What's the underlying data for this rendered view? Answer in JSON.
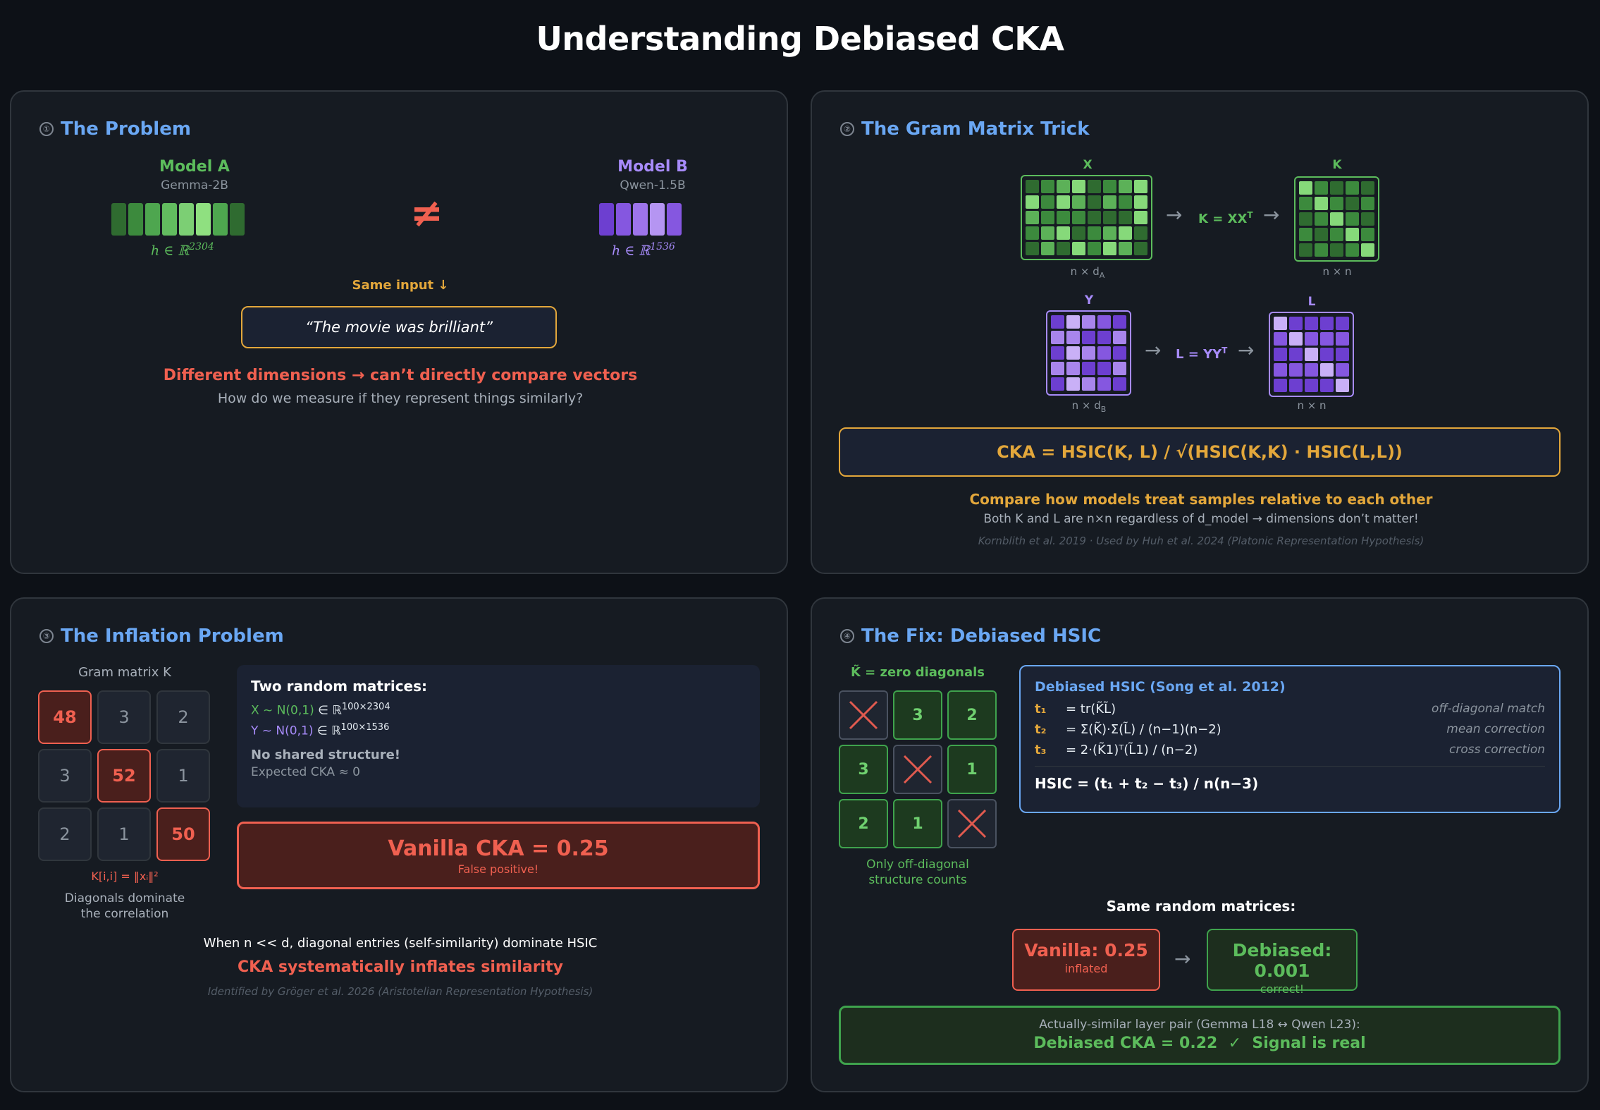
{
  "title": "Understanding Debiased CKA",
  "colors": {
    "green": "#5cbc5c",
    "purple": "#a78bfa",
    "orange": "#e3a73b",
    "red": "#f06050",
    "blue": "#6aa7f3"
  },
  "panel1": {
    "num": "①",
    "title": "The Problem",
    "model_a": {
      "name": "Model A",
      "sub": "Gemma-2B",
      "dim": "h ∈ ℝ",
      "dim_sup": "2304"
    },
    "model_b": {
      "name": "Model B",
      "sub": "Qwen-1.5B",
      "dim": "h ∈ ℝ",
      "dim_sup": "1536"
    },
    "neq": "≠",
    "same_input": "Same input ↓",
    "quote": "“The movie was brilliant”",
    "headline": "Different dimensions → can’t directly compare vectors",
    "subline": "How do we measure if they represent things similarly?"
  },
  "panel2": {
    "num": "②",
    "title": "The Gram Matrix Trick",
    "x_label": "X",
    "k_label": "K",
    "y_label": "Y",
    "l_label": "L",
    "k_eq": "K = XX",
    "l_eq": "L = YY",
    "transpose": "T",
    "x_dim": "n × d",
    "x_dim_sub": "A",
    "y_dim": "n × d",
    "y_dim_sub": "B",
    "nn": "n × n",
    "arrow": "→",
    "formula": "CKA = HSIC(K, L) / √(HSIC(K,K) · HSIC(L,L))",
    "compare": "Compare how models treat samples relative to each other",
    "compare_sub": "Both K and L are n×n regardless of d_model → dimensions don’t matter!",
    "citation": "Kornblith et al. 2019 · Used by Huh et al. 2024 (Platonic Representation Hypothesis)"
  },
  "panel3": {
    "num": "③",
    "title": "The Inflation Problem",
    "gram_label": "Gram matrix K",
    "gram": [
      [
        "48",
        "3",
        "2"
      ],
      [
        "3",
        "52",
        "1"
      ],
      [
        "2",
        "1",
        "50"
      ]
    ],
    "diag_formula": "K[i,i] = ‖xᵢ‖²",
    "diag_caption1": "Diagonals dominate",
    "diag_caption2": "the correlation",
    "info_title": "Two random matrices:",
    "x_line": "X ~ N(0,1)",
    "y_line": "Y ~ N(0,1)",
    "in_r": "∈ ℝ",
    "x_sup": "100×2304",
    "y_sup": "100×1536",
    "no_shared": "No shared structure!",
    "expected": "Expected CKA ≈ 0",
    "vanilla": "Vanilla CKA = 0.25",
    "false_pos": "False positive!",
    "explain": "When n << d, diagonal entries (self-similarity) dominate HSIC",
    "inflates": "CKA systematically inflates similarity",
    "citation": "Identified by Gröger et al. 2026 (Aristotelian Representation Hypothesis)"
  },
  "panel4": {
    "num": "④",
    "title": "The Fix: Debiased HSIC",
    "k_tilde": "K̃ = zero diagonals",
    "kt": [
      [
        "",
        "3",
        "2"
      ],
      [
        "3",
        "",
        "1"
      ],
      [
        "2",
        "1",
        ""
      ]
    ],
    "only1": "Only off-diagonal",
    "only2": "structure counts",
    "hsic_title": "Debiased HSIC (Song et al. 2012)",
    "terms": [
      {
        "key": "t₁",
        "formula": "= tr(K̃L̃)",
        "desc": "off-diagonal match"
      },
      {
        "key": "t₂",
        "formula": "= Σ(K̃)·Σ(L̃) / (n−1)(n−2)",
        "desc": "mean correction"
      },
      {
        "key": "t₃",
        "formula": "= 2·(K̃1)ᵀ(L̃1) / (n−2)",
        "desc": "cross correction"
      }
    ],
    "hsic_eq": "HSIC = (t₁ + t₂ − t₃) / n(n−3)",
    "same_random": "Same random matrices:",
    "vanilla_val": "Vanilla: 0.25",
    "vanilla_sub": "inflated",
    "debiased_val": "Debiased: 0.001",
    "debiased_sub": "correct!",
    "arrow": "→",
    "pair": "Actually-similar layer pair (Gemma L18 ↔ Qwen L23):",
    "result": "Debiased CKA = 0.22  ✓  Signal is real"
  }
}
